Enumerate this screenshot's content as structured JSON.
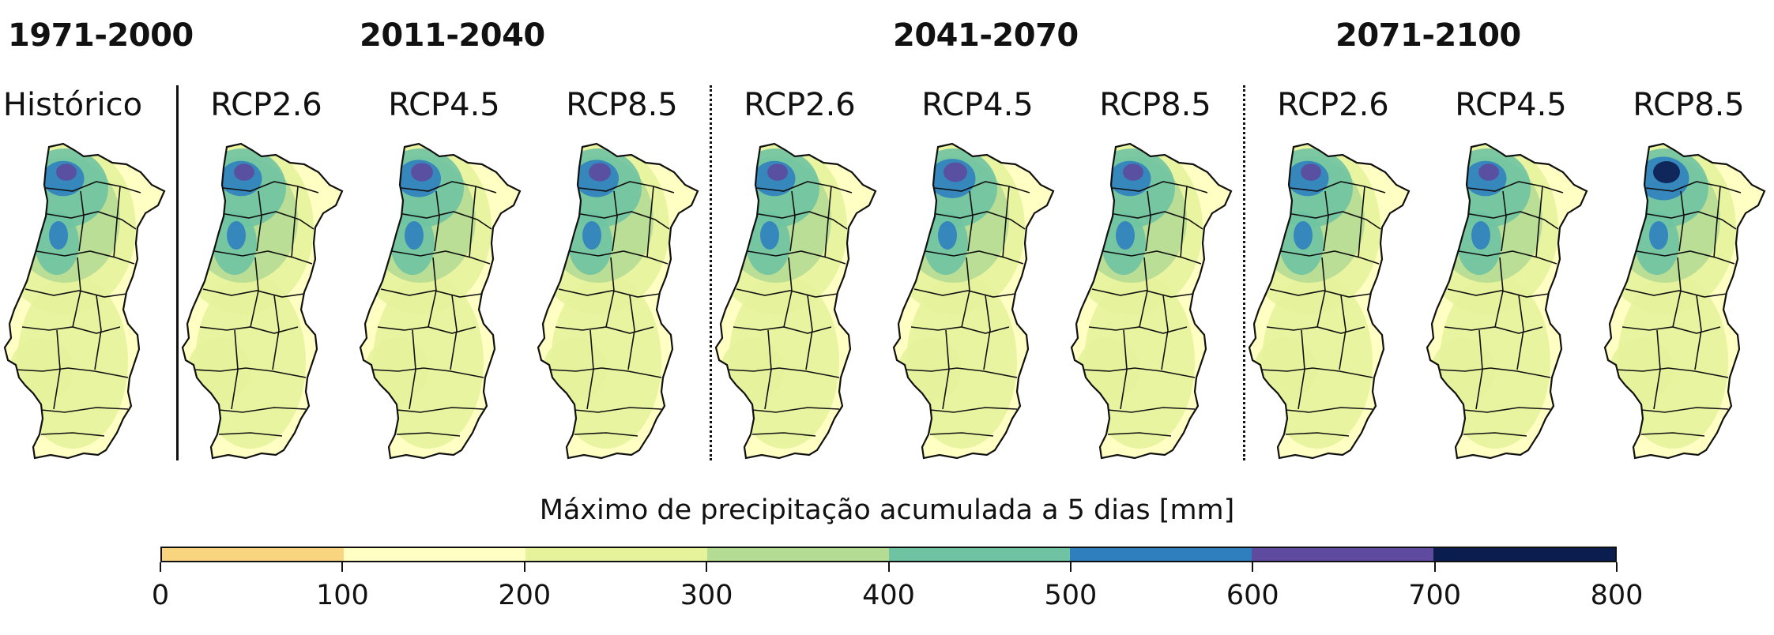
{
  "periods": [
    {
      "label": "1971-2000"
    },
    {
      "label": "2011-2040"
    },
    {
      "label": "2041-2070"
    },
    {
      "label": "2071-2100"
    }
  ],
  "panels": [
    {
      "label": "Histórico",
      "period": "1971-2000",
      "intensity": 0.55
    },
    {
      "label": "RCP2.6",
      "period": "2011-2040",
      "intensity": 0.55
    },
    {
      "label": "RCP4.5",
      "period": "2011-2040",
      "intensity": 0.6
    },
    {
      "label": "RCP8.5",
      "period": "2011-2040",
      "intensity": 0.6
    },
    {
      "label": "RCP2.6",
      "period": "2041-2070",
      "intensity": 0.55
    },
    {
      "label": "RCP4.5",
      "period": "2041-2070",
      "intensity": 0.65
    },
    {
      "label": "RCP8.5",
      "period": "2041-2070",
      "intensity": 0.55
    },
    {
      "label": "RCP2.6",
      "period": "2071-2100",
      "intensity": 0.55
    },
    {
      "label": "RCP4.5",
      "period": "2071-2100",
      "intensity": 0.55
    },
    {
      "label": "RCP8.5",
      "period": "2071-2100",
      "intensity": 0.75
    }
  ],
  "colorbar": {
    "title": "Máximo de precipitação acumulada a 5 dias [mm]",
    "ticks": [
      "0",
      "100",
      "200",
      "300",
      "400",
      "500",
      "600",
      "700",
      "800"
    ],
    "colors": [
      "#f8d57e",
      "#ffffc4",
      "#e6f39b",
      "#b5dc93",
      "#6fc3a2",
      "#2f7fbf",
      "#5e4a9e",
      "#0b1d4f"
    ]
  }
}
